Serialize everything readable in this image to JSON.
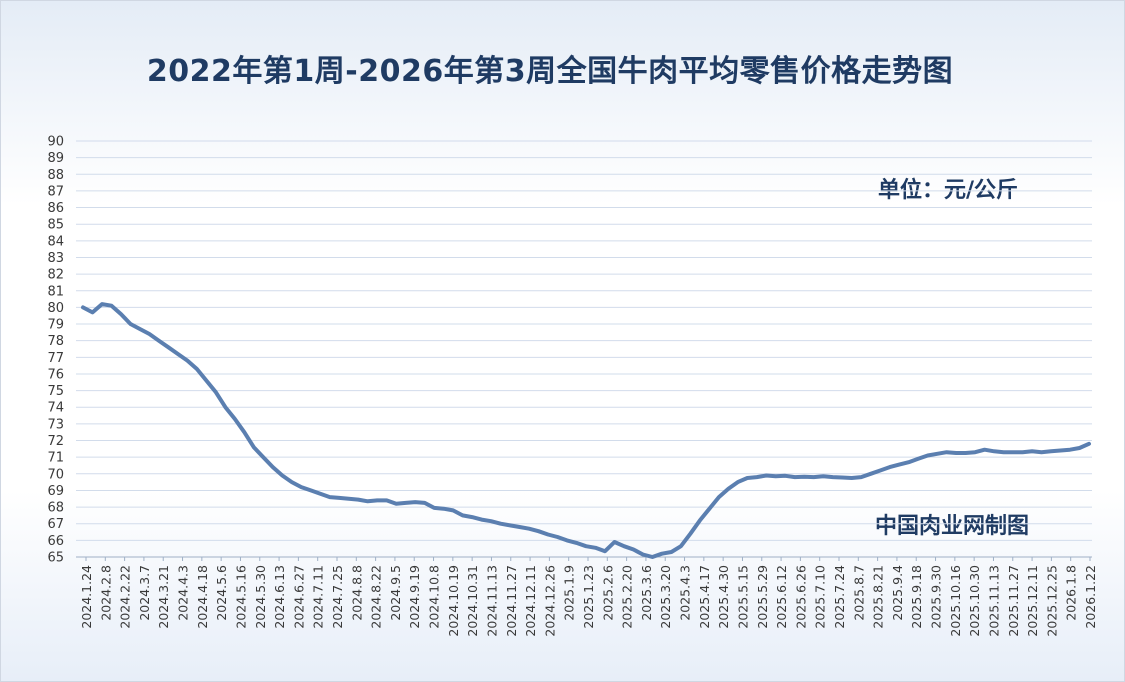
{
  "chart_data": {
    "type": "line",
    "title": "2022年第1周-2026年第3周全国牛肉平均零售价格走势图",
    "unit": "单位：元/公斤",
    "source": "中国肉业网制图",
    "ylim": [
      65,
      90
    ],
    "yticks": [
      65,
      66,
      67,
      68,
      69,
      70,
      71,
      72,
      73,
      74,
      75,
      76,
      77,
      78,
      79,
      80,
      81,
      82,
      83,
      84,
      85,
      86,
      87,
      88,
      89,
      90
    ],
    "grid": true,
    "legend": "none",
    "line_color": "#5b7fb0",
    "xtick_labels": [
      "2024.1.24",
      "2024.2.8",
      "2024.2.22",
      "2024.3.7",
      "2024.3.21",
      "2024.4.3",
      "2024.4.18",
      "2024.5.6",
      "2024.5.16",
      "2024.5.30",
      "2024.6.13",
      "2024.6.27",
      "2024.7.11",
      "2024.7.25",
      "2024.8.8",
      "2024.8.22",
      "2024.9.5",
      "2024.9.19",
      "2024.10.8",
      "2024.10.19",
      "2024.10.31",
      "2024.11.13",
      "2024.11.27",
      "2024.12.11",
      "2024.12.26",
      "2025.1.9",
      "2025.1.23",
      "2025.2.6",
      "2025.2.20",
      "2025.3.6",
      "2025.3.20",
      "2025.4.3",
      "2025.4.17",
      "2025.4.30",
      "2025.5.15",
      "2025.5.29",
      "2025.6.12",
      "2025.6.26",
      "2025.7.10",
      "2025.7.24",
      "2025.8.7",
      "2025.8.21",
      "2025.9.4",
      "2025.9.18",
      "2025.9.30",
      "2025.10.16",
      "2025.10.30",
      "2025.11.13",
      "2025.11.27",
      "2025.12.11",
      "2025.12.25",
      "2026.1.8",
      "2026.1.22"
    ],
    "values": [
      80.0,
      79.7,
      80.2,
      80.1,
      79.6,
      79.0,
      78.7,
      78.4,
      78.0,
      77.6,
      77.2,
      76.8,
      76.3,
      75.6,
      74.9,
      74.0,
      73.3,
      72.5,
      71.6,
      71.0,
      70.4,
      69.9,
      69.5,
      69.2,
      69.0,
      68.8,
      68.6,
      68.55,
      68.5,
      68.45,
      68.35,
      68.4,
      68.4,
      68.2,
      68.25,
      68.3,
      68.25,
      67.95,
      67.9,
      67.8,
      67.5,
      67.4,
      67.25,
      67.15,
      67.0,
      66.9,
      66.8,
      66.7,
      66.55,
      66.35,
      66.2,
      66.0,
      65.85,
      65.65,
      65.55,
      65.35,
      65.9,
      65.65,
      65.45,
      65.15,
      65.0,
      65.2,
      65.3,
      65.65,
      66.4,
      67.2,
      67.9,
      68.6,
      69.1,
      69.5,
      69.75,
      69.8,
      69.9,
      69.85,
      69.88,
      69.8,
      69.82,
      69.8,
      69.85,
      69.8,
      69.78,
      69.75,
      69.8,
      70.0,
      70.2,
      70.4,
      70.55,
      70.7,
      70.9,
      71.1,
      71.2,
      71.3,
      71.25,
      71.25,
      71.3,
      71.45,
      71.35,
      71.3,
      71.3,
      71.3,
      71.35,
      71.3,
      71.35,
      71.4,
      71.45,
      71.55,
      71.8
    ]
  }
}
